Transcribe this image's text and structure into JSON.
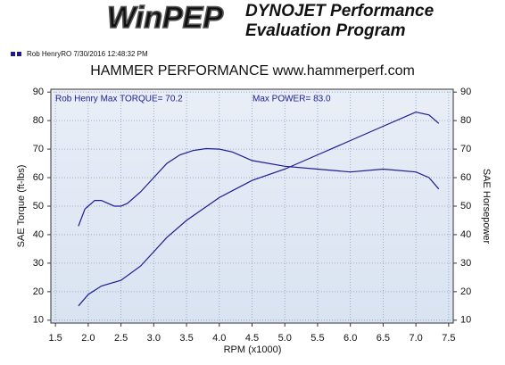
{
  "chart_data": {
    "type": "line",
    "logo": "WinPEP",
    "header": [
      "DYNOJET Performance",
      "Evaluation Program"
    ],
    "legend_text": "Rob HenryRO  7/30/2016 12:48:32 PM",
    "title": "HAMMER PERFORMANCE www.hammerperf.com",
    "annotations": [
      "Rob Henry  Max TORQUE= 70.2",
      "Max POWER= 83.0"
    ],
    "x_label": "RPM (x1000)",
    "y_label": "SAE Torque (ft-lbs)",
    "y2_label": "SAE Horsepower",
    "xlim": [
      1.43,
      7.57
    ],
    "xticks": [
      1.5,
      {
        "value": 2,
        "label": "2.0"
      },
      2.5,
      {
        "value": 3,
        "label": "3.0"
      },
      3.5,
      {
        "value": 4,
        "label": "4.0"
      },
      4.5,
      {
        "value": 5,
        "label": "5.0"
      },
      5.5,
      {
        "value": 6,
        "label": "6.0"
      },
      6.5,
      {
        "value": 7,
        "label": "7.0"
      },
      7.5
    ],
    "ylim": [
      9,
      91
    ],
    "yticks": [
      10,
      20,
      30,
      40,
      50,
      60,
      70,
      80,
      90
    ],
    "y2lim": [
      9,
      91
    ],
    "y2ticks": [
      10,
      20,
      30,
      40,
      50,
      60,
      70,
      80,
      90
    ],
    "grid": true,
    "series": [
      {
        "color": "#1c1c90",
        "x": [
          1.85,
          1.95,
          2.0,
          2.1,
          2.2,
          2.3,
          2.4,
          2.5,
          2.6,
          2.8,
          3.0,
          3.2,
          3.4,
          3.6,
          3.8,
          4.0,
          4.2,
          4.5,
          5.0,
          5.5,
          6.0,
          6.5,
          7.0,
          7.2,
          7.35
        ],
        "values": [
          43,
          49,
          50,
          52,
          52,
          51,
          50,
          50,
          51,
          55,
          60,
          65,
          68,
          69.5,
          70.2,
          70,
          69,
          66,
          64,
          63,
          62,
          63,
          62,
          60,
          56
        ]
      },
      {
        "color": "#1c1c90",
        "axis": "y2",
        "x": [
          1.85,
          2.0,
          2.2,
          2.5,
          2.8,
          3.0,
          3.2,
          3.5,
          4.0,
          4.5,
          5.0,
          5.5,
          6.0,
          6.5,
          7.0,
          7.2,
          7.35
        ],
        "values": [
          15,
          19,
          22,
          24,
          29,
          34,
          39,
          45,
          53,
          59,
          63,
          68,
          73,
          78,
          83,
          82,
          79
        ]
      }
    ]
  }
}
